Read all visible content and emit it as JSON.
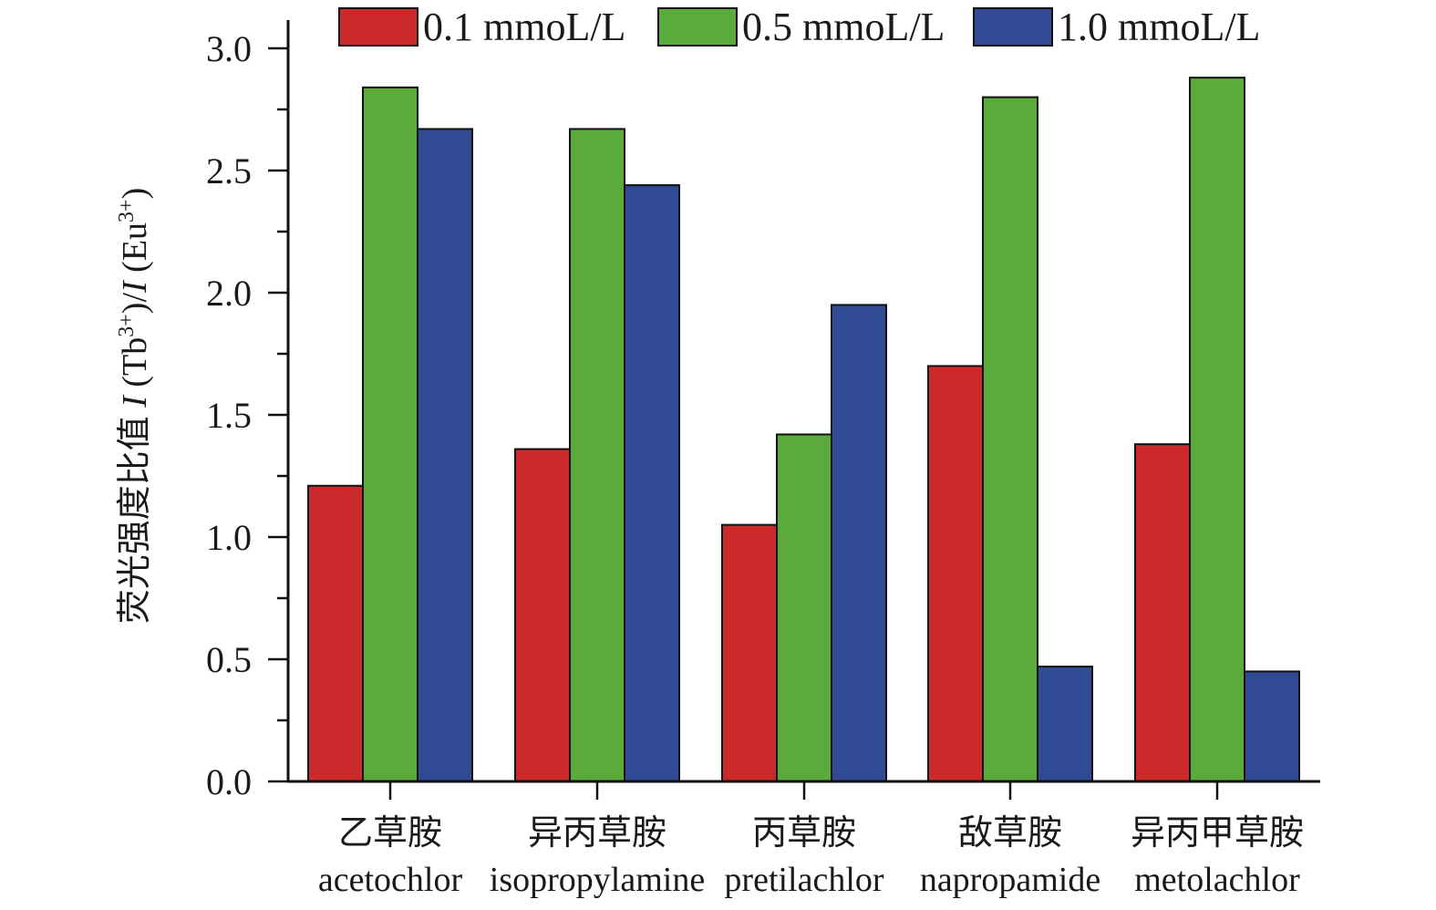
{
  "chart_data": {
    "type": "bar",
    "title": "",
    "xlabel": "",
    "ylabel": {
      "prefix": "荧光强度比值 ",
      "i1": "I",
      "tb_open": " (Tb",
      "tb_sup": "3+",
      "tb_close": ")/",
      "i2": "I",
      "eu_open": " (Eu",
      "eu_sup": "3+",
      "eu_close": ")"
    },
    "ylim": [
      0,
      3.0
    ],
    "yticks": [
      0.0,
      0.5,
      1.0,
      1.5,
      2.0,
      2.5,
      3.0
    ],
    "ytick_labels": [
      "0.0",
      "0.5",
      "1.0",
      "1.5",
      "2.0",
      "2.5",
      "3.0"
    ],
    "categories": [
      {
        "zh": "乙草胺",
        "en": "acetochlor"
      },
      {
        "zh": "异丙草胺",
        "en": "isopropylamine"
      },
      {
        "zh": "丙草胺",
        "en": "pretilachlor"
      },
      {
        "zh": "敌草胺",
        "en": "napropamide"
      },
      {
        "zh": "异丙甲草胺",
        "en": "metolachlor"
      }
    ],
    "series": [
      {
        "name": "0.1 mmoL/L",
        "color": "#cc2a2a",
        "values": [
          1.21,
          1.36,
          1.05,
          1.7,
          1.38
        ]
      },
      {
        "name": "0.5 mmoL/L",
        "color": "#5bab3b",
        "values": [
          2.84,
          2.67,
          1.42,
          2.8,
          2.88
        ]
      },
      {
        "name": "1.0 mmoL/L",
        "color": "#304a94",
        "values": [
          2.67,
          2.44,
          1.95,
          0.47,
          0.45
        ]
      }
    ],
    "legend_position": "top",
    "grid": false
  }
}
